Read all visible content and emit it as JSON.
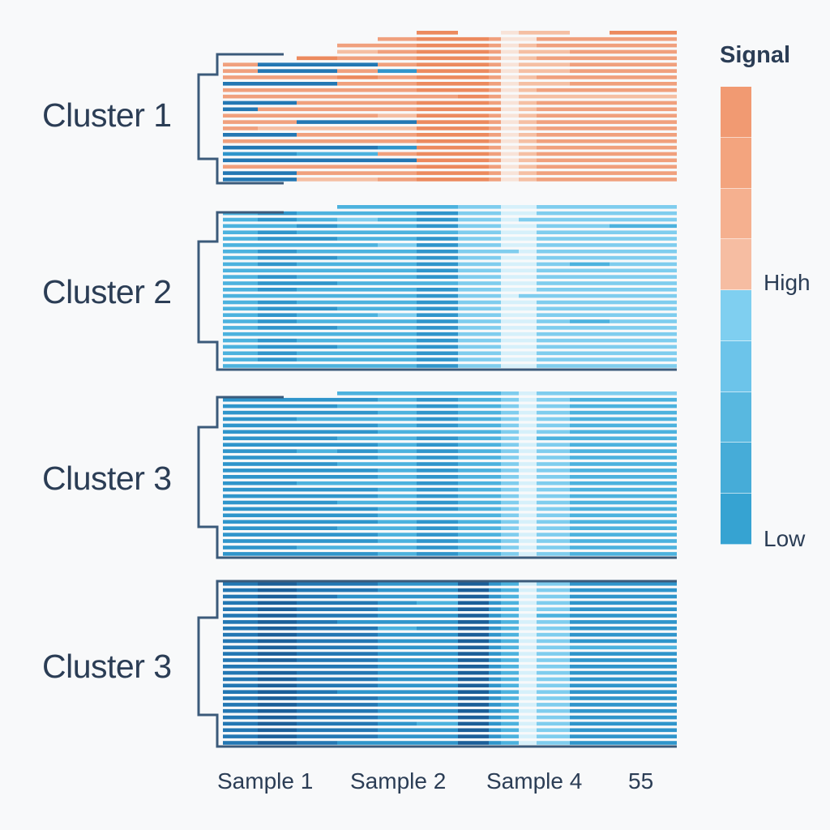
{
  "chart_data": {
    "type": "heatmap",
    "title": "",
    "legend": {
      "title": "Signal",
      "high_label": "High",
      "low_label": "Low",
      "placement": "right",
      "colors_top_to_bottom": [
        "#f19a72",
        "#f3a47e",
        "#f5b08f",
        "#f6bda2",
        "#7fcff0",
        "#6cc4ea",
        "#58b8e0",
        "#46acd8",
        "#36a3d2"
      ]
    },
    "level_colors": [
      "#1b5f99",
      "#2377b3",
      "#2f95cb",
      "#4cb2de",
      "#7fcdee",
      "#d6f0fa",
      "#f8e3d8",
      "#f5bfa3",
      "#f0a07d",
      "#ec8a5e"
    ],
    "x_tick_labels": [
      "Sample 1",
      "Sample 2",
      "Sample 4",
      "55"
    ],
    "column_count": 13,
    "clusters": [
      {
        "label": "Cluster 1",
        "rows": [
          ".....9..677.9",
          "....899866888",
          "...8899867888",
          "...7899867788",
          "..98899867888",
          "8111899867788",
          "8118299867788",
          "8889899867888",
          "1118899867788",
          "8888899867888",
          "8888889867777",
          "1188899867888",
          "1888899967888",
          "8888799867888",
          "8811199867888",
          "8777799867888",
          "1188899867888",
          "8888899867888",
          "1111299867888",
          "2233899867888",
          "1111199867888",
          "8888899867888",
          "1188899867888",
          "1177899867888"
        ]
      },
      {
        "label": "Cluster 2",
        "rows": [
          "...3334455444",
          "3233324455444",
          "3234324454444",
          "3323324455443",
          "3233334455444",
          "3223324455444",
          "3333424455444",
          "3233324445444",
          "3223324455444",
          "3233324455434",
          "3333324455444",
          "3233324455444",
          "3223334455444",
          "3233324455444",
          "3333324454444",
          "3233324455444",
          "3223324455444",
          "3233424455444",
          "3233324455434",
          "3223324455444",
          "3333324455444",
          "3233324455444",
          "3223324455444",
          "3233324455444",
          "3233324455444",
          "3333324455444"
        ]
      },
      {
        "label": "Cluster 3",
        "rows": [
          "...3333345444",
          "2222323345433",
          "2223323345433",
          "2222323345433",
          "2233323345433",
          "2222323345433",
          "2222333345433",
          "2223323345333",
          "2222323345433",
          "2232323345433",
          "2222323345433",
          "2223323345433",
          "2222323345433",
          "2222323345433",
          "2233323345433",
          "2222323345433",
          "2222323345433",
          "2223323345433",
          "2222323345433",
          "2222333345433",
          "2222323345433",
          "2223323345433",
          "2222323345433",
          "2222323345433",
          "2233323345433",
          "2222323345433"
        ]
      },
      {
        "label": "Cluster 3",
        "rows": [
          "1011220235422",
          "1011220235422",
          "1012220235422",
          "1011230235422",
          "1011220235422",
          "1011220235322",
          "1012220235422",
          "1011320235422",
          "1011220235422",
          "1011220235422",
          "1011220235433",
          "1011220235422",
          "1011220235422",
          "1111220235422",
          "1011220235422",
          "1011220235422",
          "1011220235422",
          "1012220235422",
          "1011220235422",
          "1011220235422",
          "1011220235422",
          "1011220235422",
          "1011230235422",
          "1011220235422",
          "1011220235422",
          "1012220235422"
        ]
      }
    ]
  }
}
